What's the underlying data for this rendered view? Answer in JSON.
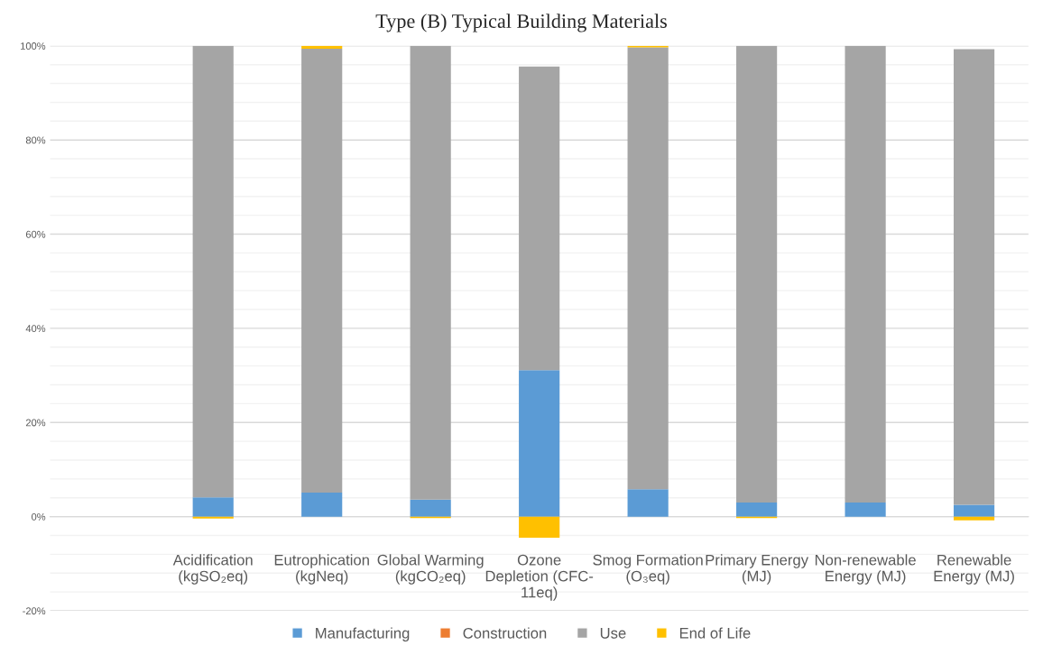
{
  "chart_data": {
    "type": "bar",
    "title": "Type (B) Typical Building Materials",
    "categories": [
      null,
      "Acidification\n(kgSO₂eq)",
      "Eutrophication\n(kgNeq)",
      "Global Warming\n(kgCO₂eq)",
      "Ozone\nDepletion (CFC-\n11eq)",
      "Smog Formation\n(O₃eq)",
      "Primary Energy\n(MJ)",
      "Non-renewable\nEnergy (MJ)",
      "Renewable\nEnergy (MJ)"
    ],
    "stacked": true,
    "series": [
      {
        "name": "Manufacturing",
        "color": "#5b9bd5",
        "values": [
          null,
          4.1,
          5.1,
          3.6,
          31.1,
          5.8,
          3.0,
          3.0,
          2.5
        ]
      },
      {
        "name": "Construction",
        "color": "#ed7d31",
        "values": [
          null,
          0,
          0,
          0,
          0,
          0,
          0,
          0,
          0
        ]
      },
      {
        "name": "Use",
        "color": "#a5a5a5",
        "values": [
          null,
          95.9,
          94.3,
          96.4,
          64.5,
          93.9,
          97.0,
          97.0,
          96.8
        ]
      },
      {
        "name": "End of Life",
        "color": "#ffc000",
        "values": [
          null,
          -0.4,
          0.6,
          -0.3,
          -4.5,
          0.3,
          -0.3,
          0,
          -0.8
        ]
      }
    ],
    "ylim": [
      -20,
      100
    ],
    "yticks": [
      {
        "value": -20,
        "label": "-20%"
      },
      {
        "value": 0,
        "label": "0%"
      },
      {
        "value": 20,
        "label": "20%"
      },
      {
        "value": 40,
        "label": "40%"
      },
      {
        "value": 60,
        "label": "60%"
      },
      {
        "value": 80,
        "label": "80%"
      },
      {
        "value": 100,
        "label": "100%"
      }
    ],
    "grid": "y",
    "legend": "bottom"
  }
}
